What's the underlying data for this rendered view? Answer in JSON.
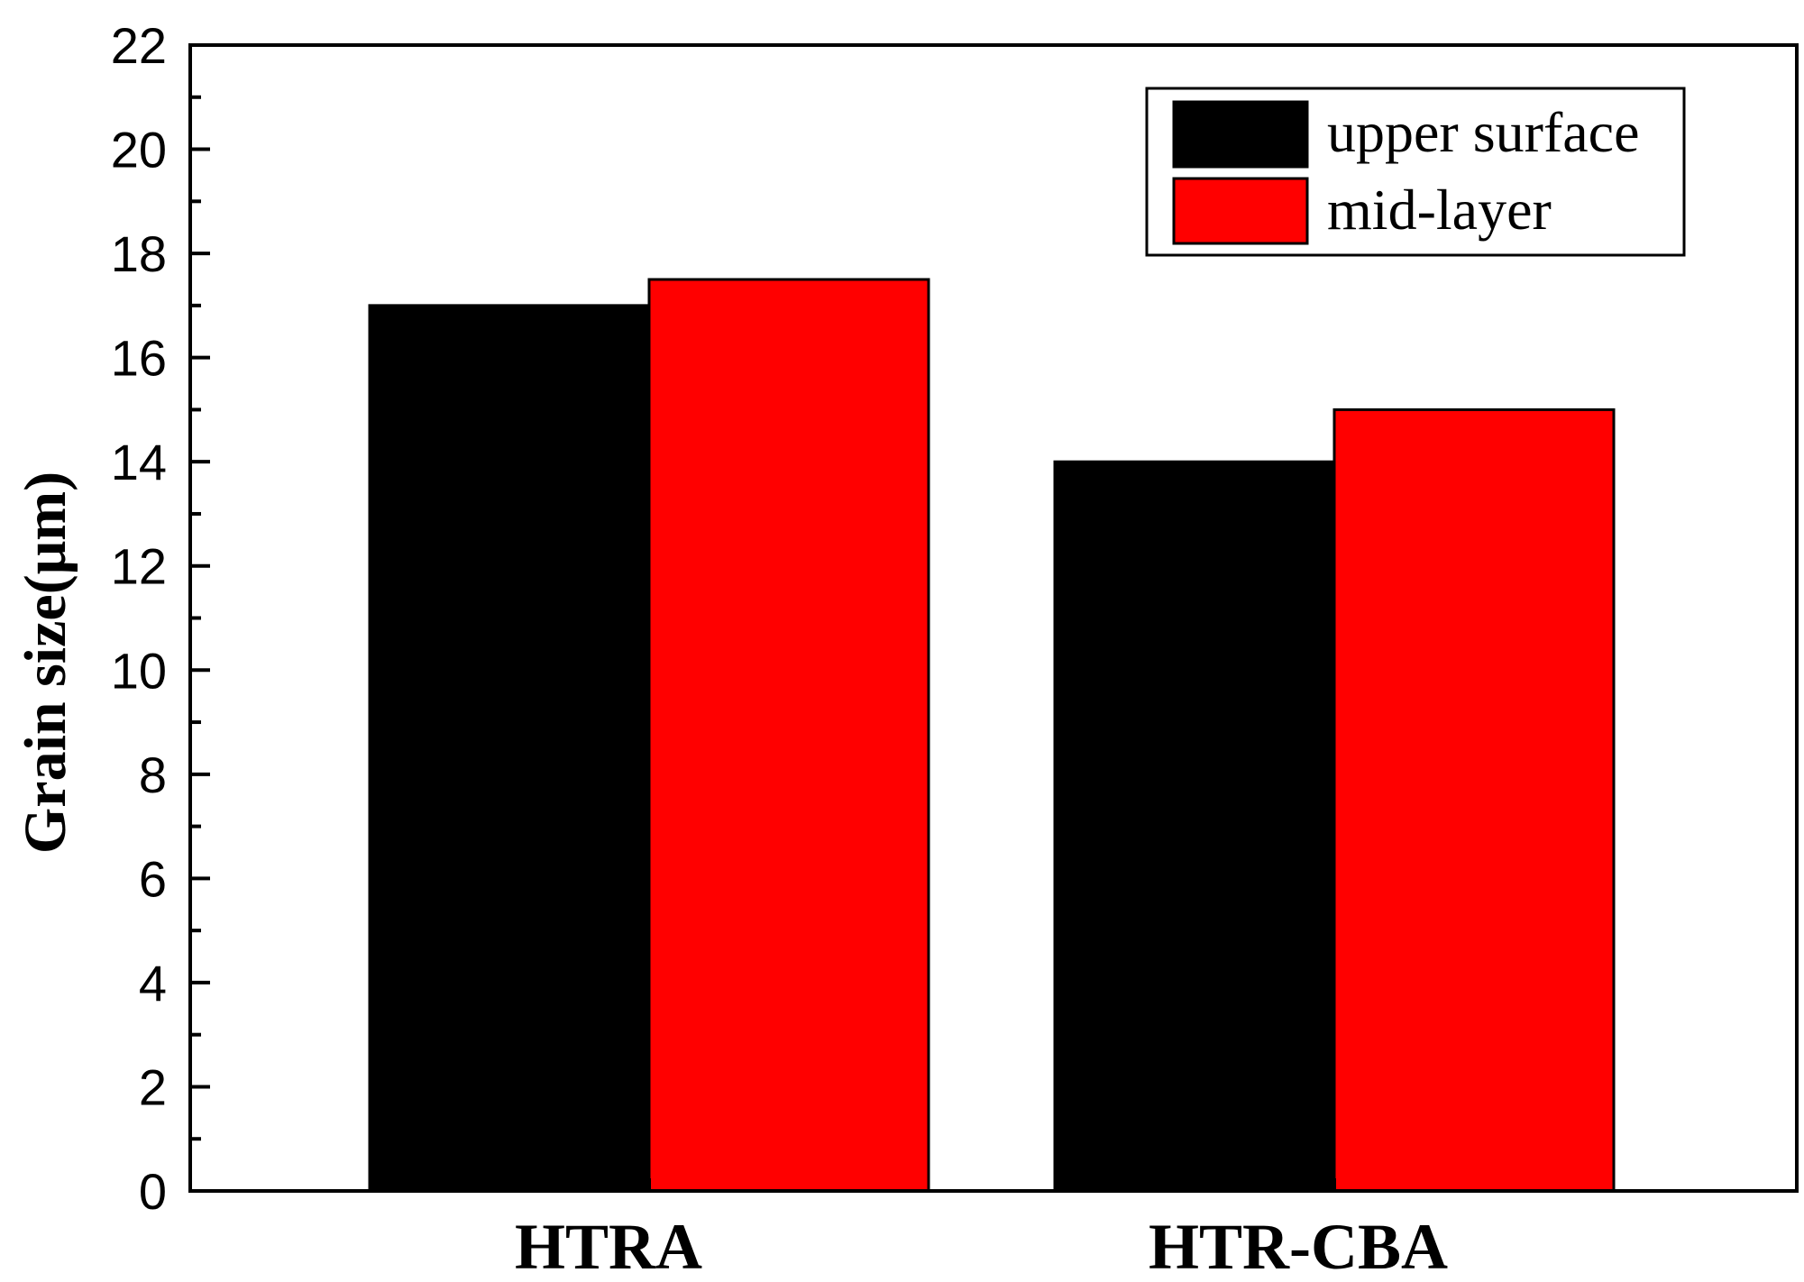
{
  "chart_data": {
    "type": "bar",
    "title": "",
    "xlabel": "",
    "ylabel": "Grain size(μm)",
    "ylim": [
      0,
      22
    ],
    "yticks": [
      "0",
      "2",
      "4",
      "6",
      "8",
      "10",
      "12",
      "14",
      "16",
      "18",
      "20",
      "22"
    ],
    "categories": [
      "HTRA",
      "HTR-CBA"
    ],
    "series": [
      {
        "name": "upper surface",
        "values": [
          17,
          14
        ],
        "color": "#000000"
      },
      {
        "name": "mid-layer",
        "values": [
          17.5,
          15
        ],
        "color": "#ff0000"
      }
    ],
    "legend_position": "top-right",
    "grid": false
  }
}
